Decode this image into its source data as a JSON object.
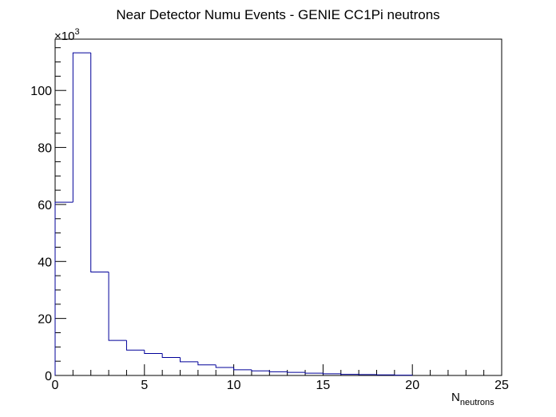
{
  "chart_data": {
    "type": "bar",
    "title": "Near Detector Numu Events - GENIE CC1Pi neutrons",
    "xlabel_main": "N",
    "xlabel_sub": "neutrons",
    "y_multiplier_base": "×10",
    "y_multiplier_exp": "3",
    "xlim": [
      0,
      25
    ],
    "ylim": [
      0,
      118
    ],
    "x_ticks": [
      0,
      5,
      10,
      15,
      20,
      25
    ],
    "y_ticks": [
      0,
      20,
      40,
      60,
      80,
      100
    ],
    "bin_width": 1,
    "bin_lows": [
      0,
      1,
      2,
      3,
      4,
      5,
      6,
      7,
      8,
      9,
      10,
      11,
      12,
      13,
      14,
      15,
      16,
      17,
      18,
      19
    ],
    "values": [
      60.8,
      113.2,
      36.3,
      12.3,
      8.9,
      7.7,
      6.3,
      4.8,
      3.7,
      2.8,
      2.0,
      1.6,
      1.3,
      1.1,
      0.8,
      0.6,
      0.4,
      0.3,
      0.2,
      0.1
    ],
    "line_color": "#000099",
    "grid": false
  }
}
